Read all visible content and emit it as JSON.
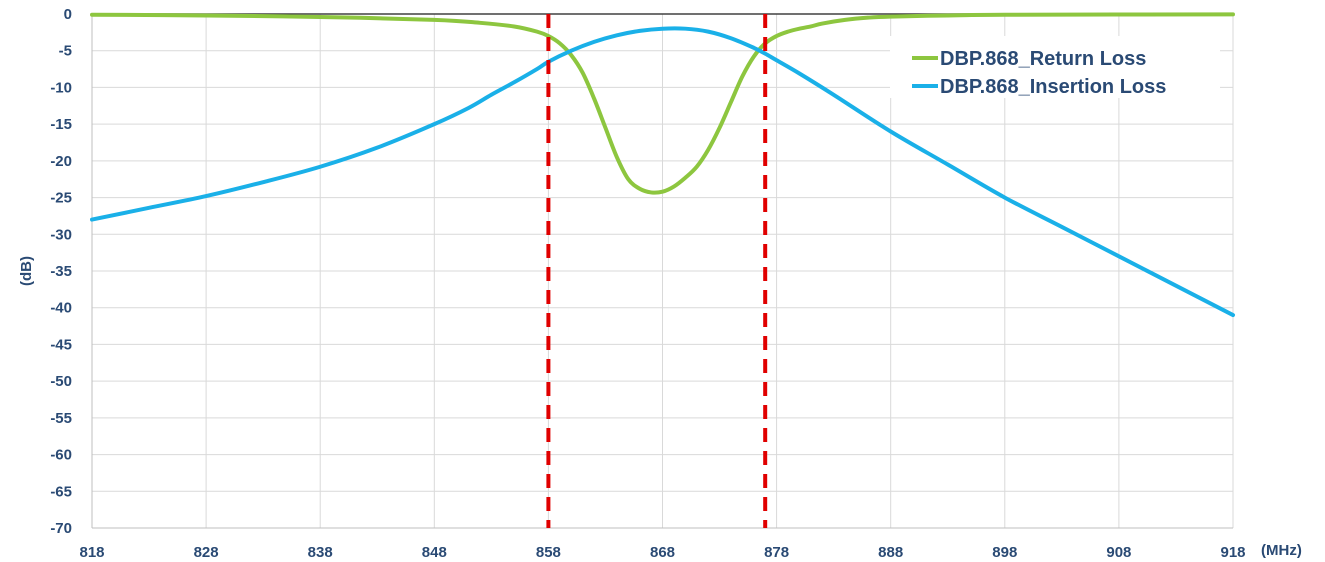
{
  "chart_data": {
    "type": "line",
    "xlabel": "(MHz)",
    "ylabel": "(dB)",
    "xlim": [
      818,
      918
    ],
    "ylim": [
      -70,
      0
    ],
    "x_ticks": [
      818,
      828,
      838,
      848,
      858,
      868,
      878,
      888,
      898,
      908,
      918
    ],
    "y_ticks": [
      0,
      -5,
      -10,
      -15,
      -20,
      -25,
      -30,
      -35,
      -40,
      -45,
      -50,
      -55,
      -60,
      -65,
      -70
    ],
    "grid": true,
    "legend_position": "top-right",
    "series": [
      {
        "name": "DBP.868_Return Loss",
        "color": "#8dc63f",
        "x": [
          818,
          828,
          838,
          848,
          852,
          855,
          857,
          858,
          859,
          860,
          861,
          862,
          863,
          864,
          865,
          866,
          867,
          868,
          869,
          870,
          871,
          872,
          873,
          874,
          875,
          876,
          877,
          878,
          879,
          880,
          881,
          882,
          884,
          886,
          888,
          893,
          898,
          918
        ],
        "y": [
          -0.1,
          -0.2,
          -0.4,
          -0.8,
          -1.2,
          -1.7,
          -2.4,
          -3.0,
          -4.0,
          -5.6,
          -8.0,
          -11.5,
          -15.5,
          -19.5,
          -22.5,
          -23.8,
          -24.3,
          -24.2,
          -23.5,
          -22.3,
          -20.8,
          -18.5,
          -15.5,
          -12.0,
          -8.5,
          -5.8,
          -4.0,
          -3.0,
          -2.4,
          -2.0,
          -1.7,
          -1.3,
          -0.8,
          -0.5,
          -0.35,
          -0.2,
          -0.1,
          -0.05
        ]
      },
      {
        "name": "DBP.868_Insertion Loss",
        "color": "#1ab0e8",
        "x": [
          818,
          823,
          828,
          833,
          838,
          843,
          848,
          851,
          853,
          855,
          857,
          858,
          860,
          862,
          864,
          866,
          868,
          870,
          872,
          874,
          876,
          877,
          878,
          880,
          883,
          888,
          893,
          898,
          903,
          908,
          913,
          918
        ],
        "y": [
          -28.0,
          -26.4,
          -24.8,
          -22.9,
          -20.8,
          -18.2,
          -15.0,
          -12.8,
          -11.0,
          -9.3,
          -7.5,
          -6.5,
          -5.0,
          -3.8,
          -2.9,
          -2.3,
          -2.0,
          -2.0,
          -2.4,
          -3.3,
          -4.6,
          -5.4,
          -6.3,
          -8.1,
          -11.0,
          -16.0,
          -20.5,
          -25.0,
          -29.0,
          -33.0,
          -37.0,
          -41.0
        ]
      }
    ],
    "markers": {
      "type": "vertical-dashed",
      "color": "#e00000",
      "x": [
        858,
        877
      ]
    }
  }
}
